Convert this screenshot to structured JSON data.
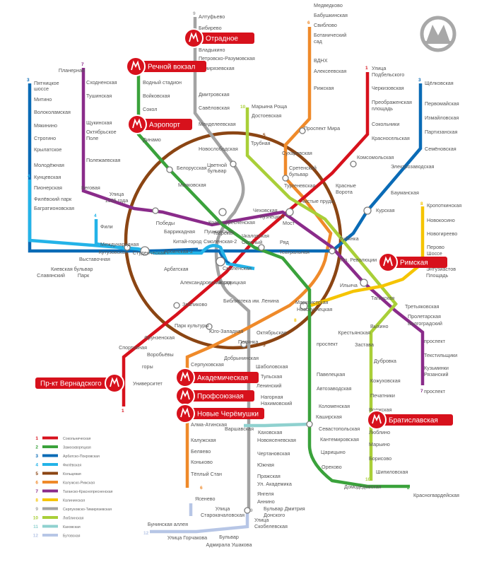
{
  "lines": [
    {
      "num": "1",
      "name": "Сокольническая",
      "color": "#d7111c"
    },
    {
      "num": "2",
      "name": "Замоскворецкая",
      "color": "#3aa23b"
    },
    {
      "num": "3",
      "name": "Арбатско-Покровская",
      "color": "#0a6bb6"
    },
    {
      "num": "4",
      "name": "Филёвская",
      "color": "#23b3e8"
    },
    {
      "num": "5",
      "name": "Кольцевая",
      "color": "#8b4513"
    },
    {
      "num": "6",
      "name": "Калужско-Рижская",
      "color": "#ef8a2a"
    },
    {
      "num": "7",
      "name": "Таганско-Краснопресненская",
      "color": "#8a2b8a"
    },
    {
      "num": "8",
      "name": "Калининская",
      "color": "#f5c400"
    },
    {
      "num": "9",
      "name": "Серпуховско-Тимирязевская",
      "color": "#a3a3a3"
    },
    {
      "num": "10",
      "name": "Люблинская",
      "color": "#a9cf38"
    },
    {
      "num": "11",
      "name": "Каховская",
      "color": "#8fd1cf"
    },
    {
      "num": "12",
      "name": "Бутовская",
      "color": "#b7c6e6"
    }
  ],
  "badges": [
    {
      "id": "otradnoe",
      "label": "Отрадное"
    },
    {
      "id": "rechnoy",
      "label": "Речной вокзал"
    },
    {
      "id": "aeroport",
      "label": "Аэропорт"
    },
    {
      "id": "rimskaya",
      "label": "Римская"
    },
    {
      "id": "vernadskogo",
      "label": "Пр-кт Вернадского"
    },
    {
      "id": "akadem",
      "label": "Академическая"
    },
    {
      "id": "profsoyuz",
      "label": "Профсоюзная"
    },
    {
      "id": "cheryomushki",
      "label": "Новые Черёмушки"
    },
    {
      "id": "bratislavskaya",
      "label": "Братиславская"
    }
  ],
  "stations": [
    {
      "t": "Алтуфьево",
      "a": "s"
    },
    {
      "t": "Бибирево",
      "a": "s"
    },
    {
      "t": "Владыкино",
      "a": "s"
    },
    {
      "t": "Петровско-Разумовская",
      "a": "s"
    },
    {
      "t": "Тимирязевская",
      "a": "s"
    },
    {
      "t": "Дмитровская",
      "a": "s"
    },
    {
      "t": "Савёловская",
      "a": "s"
    },
    {
      "t": "Менделеевская",
      "a": "s"
    },
    {
      "t": "Новослободская",
      "a": "s"
    },
    {
      "t": "Медведково",
      "a": "s"
    },
    {
      "t": "Бабушкинская",
      "a": "s"
    },
    {
      "t": "Свиблово",
      "a": "s"
    },
    {
      "t": "Ботанический",
      "a": "s"
    },
    {
      "t": "сад",
      "a": "s"
    },
    {
      "t": "ВДНХ",
      "a": "s"
    },
    {
      "t": "Алексеевская",
      "a": "s"
    },
    {
      "t": "Рижская",
      "a": "s"
    },
    {
      "t": "Проспект Мира",
      "a": "s"
    },
    {
      "t": "Сухаревская",
      "a": "s"
    },
    {
      "t": "Улица",
      "a": "s"
    },
    {
      "t": "Подбельского",
      "a": "s"
    },
    {
      "t": "Черкизовская",
      "a": "s"
    },
    {
      "t": "Преображенская",
      "a": "s"
    },
    {
      "t": "площадь",
      "a": "s"
    },
    {
      "t": "Сокольники",
      "a": "s"
    },
    {
      "t": "Красносельская",
      "a": "s"
    },
    {
      "t": "Комсомольская",
      "a": "s"
    },
    {
      "t": "Щёлковская",
      "a": "s"
    },
    {
      "t": "Первомайская",
      "a": "s"
    },
    {
      "t": "Измайловская",
      "a": "s"
    },
    {
      "t": "Партизанская",
      "a": "s"
    },
    {
      "t": "Семёновская",
      "a": "s"
    },
    {
      "t": "Электрозаводская",
      "a": "s"
    },
    {
      "t": "Бауманская",
      "a": "s"
    },
    {
      "t": "Курская",
      "a": "s"
    },
    {
      "t": "Планерная",
      "a": "e"
    },
    {
      "t": "Сходненская",
      "a": "s"
    },
    {
      "t": "Тушинская",
      "a": "s"
    },
    {
      "t": "Щукинская",
      "a": "s"
    },
    {
      "t": "Октябрьское",
      "a": "s"
    },
    {
      "t": "Поле",
      "a": "s"
    },
    {
      "t": "Полежаевская",
      "a": "s"
    },
    {
      "t": "Беговая",
      "a": "s"
    },
    {
      "t": "Улица",
      "a": "m"
    },
    {
      "t": "1905 года",
      "a": "m"
    },
    {
      "t": "Водный стадион",
      "a": "s"
    },
    {
      "t": "Войковская",
      "a": "s"
    },
    {
      "t": "Сокол",
      "a": "s"
    },
    {
      "t": "Динамо",
      "a": "s"
    },
    {
      "t": "Белорусская",
      "a": "s"
    },
    {
      "t": "Маяковская",
      "a": "s"
    },
    {
      "t": "Цветной",
      "a": "m"
    },
    {
      "t": "бульвар",
      "a": "m"
    },
    {
      "t": "Марьина Роща",
      "a": "s"
    },
    {
      "t": "Достоевская",
      "a": "s"
    },
    {
      "t": "Трубная",
      "a": "s"
    },
    {
      "t": "Сретенский",
      "a": "s"
    },
    {
      "t": "бульвар",
      "a": "s"
    },
    {
      "t": "Тургеневская",
      "a": "s"
    },
    {
      "t": "Чистые пруды",
      "a": "s"
    },
    {
      "t": "Красные",
      "a": "s"
    },
    {
      "t": "Ворота",
      "a": "s"
    },
    {
      "t": "Пятницкое",
      "a": "s"
    },
    {
      "t": "шоссе",
      "a": "s"
    },
    {
      "t": "Митино",
      "a": "s"
    },
    {
      "t": "Волоколамская",
      "a": "s"
    },
    {
      "t": "Мякинино",
      "a": "s"
    },
    {
      "t": "Строгино",
      "a": "s"
    },
    {
      "t": "Крылатское",
      "a": "s"
    },
    {
      "t": "Молодёжная",
      "a": "s"
    },
    {
      "t": "Кунцевская",
      "a": "s"
    },
    {
      "t": "Пионерская",
      "a": "s"
    },
    {
      "t": "Филёвский парк",
      "a": "s"
    },
    {
      "t": "Багратионовская",
      "a": "s"
    },
    {
      "t": "Фили",
      "a": "s"
    },
    {
      "t": "Международная",
      "a": "s"
    },
    {
      "t": "Выставочная",
      "a": "s"
    },
    {
      "t": "Кутузовская",
      "a": "m"
    },
    {
      "t": "Студенческая",
      "a": "m"
    },
    {
      "t": "Киевская",
      "a": "s"
    },
    {
      "t": "Славянский",
      "a": "m"
    },
    {
      "t": "бульвар",
      "a": "m"
    },
    {
      "t": "Парк",
      "a": "m"
    },
    {
      "t": "Победы",
      "a": "m"
    },
    {
      "t": "Баррикадная",
      "a": "s"
    },
    {
      "t": "Краснопресненская",
      "a": "s"
    },
    {
      "t": "Пушкинская",
      "a": "s"
    },
    {
      "t": "Тверская",
      "a": "s"
    },
    {
      "t": "Чеховская",
      "a": "s"
    },
    {
      "t": "Кузнецкий",
      "a": "s"
    },
    {
      "t": "Мост",
      "a": "s"
    },
    {
      "t": "Лубянка",
      "a": "s"
    },
    {
      "t": "Чкаловская",
      "a": "s"
    },
    {
      "t": "Охотный",
      "a": "s"
    },
    {
      "t": "Ряд",
      "a": "s"
    },
    {
      "t": "Театральная",
      "a": "s"
    },
    {
      "t": "Пл. Революции",
      "a": "s"
    },
    {
      "t": "Китай-город",
      "a": "s"
    },
    {
      "t": "Арбатская-2",
      "a": "s"
    },
    {
      "t": "Смоленская-2",
      "a": "s"
    },
    {
      "t": "Арбатская",
      "a": "s"
    },
    {
      "t": "Смоленская",
      "a": "s"
    },
    {
      "t": "Александровский сад",
      "a": "s"
    },
    {
      "t": "Боровицкая",
      "a": "s"
    },
    {
      "t": "Библиотека им. Ленина",
      "a": "s"
    },
    {
      "t": "Кропоткинская",
      "a": "s"
    },
    {
      "t": "Новокосино",
      "a": "s"
    },
    {
      "t": "Новогиреево",
      "a": "s"
    },
    {
      "t": "Перово",
      "a": "s"
    },
    {
      "t": "Шоссе",
      "a": "s"
    },
    {
      "t": "Энтузиастов",
      "a": "s"
    },
    {
      "t": "Площадь",
      "a": "s"
    },
    {
      "t": "Ильича",
      "a": "s"
    },
    {
      "t": "Таганская",
      "a": "s"
    },
    {
      "t": "Марксистская",
      "a": "s"
    },
    {
      "t": "Новокузнецкая",
      "a": "s"
    },
    {
      "t": "Третьяковская",
      "a": "s"
    },
    {
      "t": "Пролетарская",
      "a": "s"
    },
    {
      "t": "Волгоградский",
      "a": "s"
    },
    {
      "t": "проспект",
      "a": "s"
    },
    {
      "t": "Текстильщики",
      "a": "s"
    },
    {
      "t": "Кузьминки",
      "a": "s"
    },
    {
      "t": "Рязанский",
      "a": "s"
    },
    {
      "t": "проспект",
      "a": "s"
    },
    {
      "t": "Выхино",
      "a": "s"
    },
    {
      "t": "Крестьянская",
      "a": "e"
    },
    {
      "t": "Застава",
      "a": "e"
    },
    {
      "t": "Дубровка",
      "a": "s"
    },
    {
      "t": "Кожуховская",
      "a": "s"
    },
    {
      "t": "Печатники",
      "a": "s"
    },
    {
      "t": "Волжская",
      "a": "s"
    },
    {
      "t": "Люблино",
      "a": "s"
    },
    {
      "t": "Марьино",
      "a": "s"
    },
    {
      "t": "Борисово",
      "a": "s"
    },
    {
      "t": "Шипиловская",
      "a": "s"
    },
    {
      "t": "Зябликово",
      "a": "s"
    },
    {
      "t": "Парк культуры",
      "a": "s"
    },
    {
      "t": "Фрунзенская",
      "a": "e"
    },
    {
      "t": "Спортивная",
      "a": "e"
    },
    {
      "t": "Воробьёвы",
      "a": "s"
    },
    {
      "t": "горы",
      "a": "s"
    },
    {
      "t": "Университет",
      "a": "s"
    },
    {
      "t": "Юго-Западная",
      "a": "s"
    },
    {
      "t": "Октябрьская",
      "a": "s"
    },
    {
      "t": "Полянка",
      "a": "s"
    },
    {
      "t": "Добрынинская",
      "a": "e"
    },
    {
      "t": "Серпуховская",
      "a": "s"
    },
    {
      "t": "Шаболовская",
      "a": "s"
    },
    {
      "t": "Тульская",
      "a": "s"
    },
    {
      "t": "Ленинский",
      "a": "s"
    },
    {
      "t": "Нагорная",
      "a": "s"
    },
    {
      "t": "Нахимовский",
      "a": "s"
    },
    {
      "t": "проспект",
      "a": "s"
    },
    {
      "t": "Павелецкая",
      "a": "s"
    },
    {
      "t": "Автозаводская",
      "a": "s"
    },
    {
      "t": "Коломенская",
      "a": "s"
    },
    {
      "t": "Каширская",
      "a": "s"
    },
    {
      "t": "Варшавская",
      "a": "s"
    },
    {
      "t": "Каховская",
      "a": "s"
    },
    {
      "t": "Севастопольская",
      "a": "s"
    },
    {
      "t": "Кантемировская",
      "a": "s"
    },
    {
      "t": "Царицыно",
      "a": "s"
    },
    {
      "t": "Орехово",
      "a": "s"
    },
    {
      "t": "Домодедовская",
      "a": "s"
    },
    {
      "t": "Красногвардейская",
      "a": "s"
    },
    {
      "t": "Алма-Атинская",
      "a": "s"
    },
    {
      "t": "Калужская",
      "a": "s"
    },
    {
      "t": "Беляево",
      "a": "s"
    },
    {
      "t": "Коньково",
      "a": "s"
    },
    {
      "t": "Тёплый Стан",
      "a": "s"
    },
    {
      "t": "Ясенево",
      "a": "s"
    },
    {
      "t": "Новоясеневская",
      "a": "s"
    },
    {
      "t": "Чертановская",
      "a": "s"
    },
    {
      "t": "Южная",
      "a": "s"
    },
    {
      "t": "Пражская",
      "a": "s"
    },
    {
      "t": "Ул. Академика",
      "a": "s"
    },
    {
      "t": "Янгеля",
      "a": "s"
    },
    {
      "t": "Аннино",
      "a": "s"
    },
    {
      "t": "Бульвар Дмитрия",
      "a": "s"
    },
    {
      "t": "Донского",
      "a": "s"
    },
    {
      "t": "Улица",
      "a": "m"
    },
    {
      "t": "Старокачаловская",
      "a": "m"
    },
    {
      "t": "Улица",
      "a": "s"
    },
    {
      "t": "Скобелевская",
      "a": "s"
    },
    {
      "t": "Бунинская аллея",
      "a": "e"
    },
    {
      "t": "Улица Горчакова",
      "a": "m"
    },
    {
      "t": "Бульвар",
      "a": "m"
    },
    {
      "t": "Адмирала Ушакова",
      "a": "m"
    }
  ],
  "line_numbers": [
    {
      "t": "9",
      "c": "#a3a3a3"
    },
    {
      "t": "6",
      "c": "#ef8a2a"
    },
    {
      "t": "1",
      "c": "#d7111c"
    },
    {
      "t": "3",
      "c": "#0a6bb6"
    },
    {
      "t": "3",
      "c": "#0a6bb6"
    },
    {
      "t": "7",
      "c": "#8a2b8a"
    },
    {
      "t": "10",
      "c": "#a9cf38"
    },
    {
      "t": "5",
      "c": "#8b4513"
    },
    {
      "t": "5",
      "c": "#8b4513"
    },
    {
      "t": "4",
      "c": "#23b3e8"
    },
    {
      "t": "4",
      "c": "#23b3e8"
    },
    {
      "t": "8",
      "c": "#f5c400"
    },
    {
      "t": "8",
      "c": "#f5c400"
    },
    {
      "t": "7",
      "c": "#8a2b8a"
    },
    {
      "t": "1",
      "c": "#d7111c"
    },
    {
      "t": "6",
      "c": "#ef8a2a"
    },
    {
      "t": "2",
      "c": "#3aa23b"
    },
    {
      "t": "10",
      "c": "#a9cf38"
    },
    {
      "t": "9",
      "c": "#a3a3a3"
    },
    {
      "t": "12",
      "c": "#b7c6e6"
    }
  ]
}
